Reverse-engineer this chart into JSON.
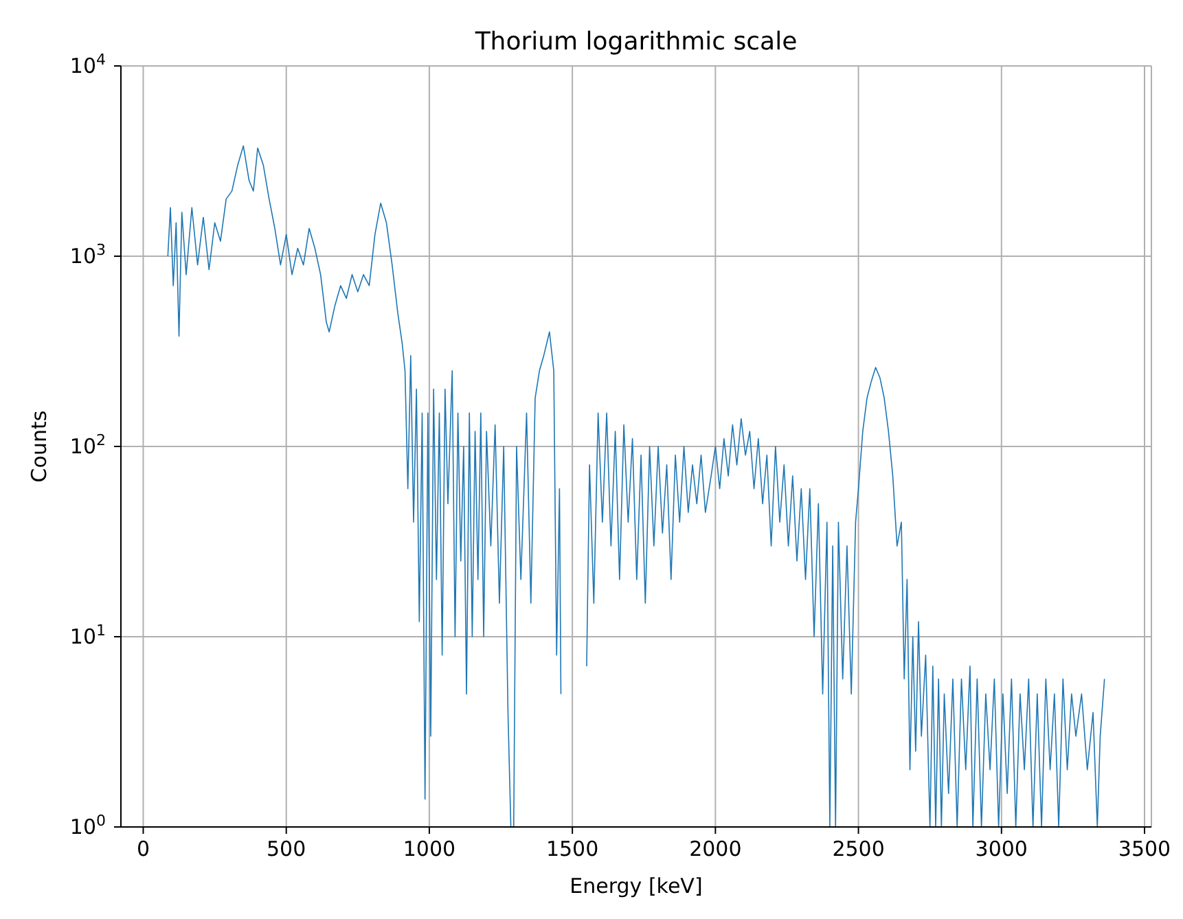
{
  "chart_data": {
    "type": "line",
    "title": "Thorium logarithmic scale",
    "xlabel": "Energy [keV]",
    "ylabel": "Counts",
    "log": "y",
    "grid": true,
    "marker": "none",
    "line_style": "solid",
    "xlim": [
      -78,
      3524
    ],
    "xticks": [
      0,
      500,
      1000,
      1500,
      2000,
      2500,
      3000,
      3500
    ],
    "ylim": [
      1,
      10000
    ],
    "yticks": [
      {
        "value": 1,
        "label": "10$^{0}$"
      },
      {
        "value": 10,
        "label": "10$^{1}$"
      },
      {
        "value": 100,
        "label": "10$^{2}$"
      },
      {
        "value": 1000,
        "label": "10$^{3}$"
      },
      {
        "value": 10000,
        "label": "10$^{4}$"
      }
    ],
    "series": [
      {
        "color": "#1f77b4",
        "x": [
          86,
          95,
          105,
          115,
          125,
          135,
          150,
          170,
          190,
          210,
          230,
          250,
          270,
          290,
          310,
          330,
          350,
          370,
          385,
          400,
          420,
          440,
          460,
          480,
          500,
          520,
          540,
          560,
          580,
          600,
          620,
          640,
          650,
          670,
          690,
          710,
          730,
          750,
          770,
          790,
          810,
          830,
          850,
          870,
          890,
          905,
          915,
          925,
          935,
          945,
          955,
          965,
          975,
          985,
          995,
          1005,
          1015,
          1025,
          1035,
          1045,
          1055,
          1065,
          1080,
          1090,
          1100,
          1110,
          1120,
          1130,
          1140,
          1150,
          1160,
          1170,
          1180,
          1190,
          1200,
          1215,
          1230,
          1245,
          1260,
          1275,
          1285,
          1295,
          1305,
          1320,
          1340,
          1355,
          1370,
          1385,
          1400,
          1420,
          1435,
          1445,
          1455,
          1460,
          1500,
          1550,
          1560,
          1575,
          1590,
          1605,
          1620,
          1635,
          1650,
          1665,
          1680,
          1695,
          1710,
          1725,
          1740,
          1755,
          1770,
          1785,
          1800,
          1815,
          1830,
          1845,
          1860,
          1875,
          1890,
          1905,
          1920,
          1935,
          1950,
          1965,
          1985,
          2000,
          2015,
          2030,
          2045,
          2060,
          2075,
          2090,
          2105,
          2120,
          2135,
          2150,
          2165,
          2180,
          2195,
          2210,
          2225,
          2240,
          2255,
          2270,
          2285,
          2300,
          2315,
          2330,
          2345,
          2360,
          2375,
          2390,
          2400,
          2410,
          2420,
          2430,
          2445,
          2460,
          2475,
          2490,
          2500,
          2515,
          2530,
          2545,
          2560,
          2575,
          2590,
          2605,
          2620,
          2635,
          2650,
          2660,
          2670,
          2680,
          2690,
          2700,
          2710,
          2720,
          2735,
          2750,
          2760,
          2770,
          2780,
          2790,
          2800,
          2815,
          2830,
          2845,
          2860,
          2875,
          2890,
          2900,
          2915,
          2930,
          2945,
          2960,
          2975,
          2990,
          3005,
          3020,
          3035,
          3050,
          3065,
          3080,
          3095,
          3110,
          3125,
          3140,
          3155,
          3170,
          3185,
          3200,
          3215,
          3230,
          3245,
          3260,
          3280,
          3300,
          3320,
          3335,
          3345,
          3360
        ],
        "values": [
          1000,
          1800,
          700,
          1500,
          380,
          1700,
          800,
          1800,
          900,
          1600,
          850,
          1500,
          1200,
          2000,
          2200,
          3000,
          3800,
          2500,
          2200,
          3700,
          3000,
          2000,
          1400,
          900,
          1300,
          800,
          1100,
          900,
          1400,
          1100,
          800,
          450,
          400,
          550,
          700,
          600,
          800,
          650,
          800,
          700,
          1300,
          1900,
          1500,
          900,
          500,
          350,
          250,
          60,
          300,
          40,
          200,
          12,
          150,
          1.4,
          150,
          3,
          200,
          20,
          150,
          8,
          200,
          50,
          250,
          10,
          150,
          25,
          100,
          5,
          150,
          10,
          120,
          20,
          150,
          10,
          120,
          30,
          130,
          15,
          100,
          4,
          1,
          1,
          100,
          20,
          150,
          15,
          180,
          250,
          300,
          400,
          250,
          8,
          60,
          5,
          null,
          7,
          80,
          15,
          150,
          40,
          150,
          30,
          120,
          20,
          130,
          40,
          110,
          20,
          90,
          15,
          100,
          30,
          100,
          35,
          80,
          20,
          90,
          40,
          100,
          45,
          80,
          50,
          90,
          45,
          70,
          100,
          60,
          110,
          70,
          130,
          80,
          140,
          90,
          120,
          60,
          110,
          50,
          90,
          30,
          100,
          40,
          80,
          30,
          70,
          25,
          60,
          20,
          60,
          10,
          50,
          5,
          40,
          1,
          30,
          1,
          40,
          6,
          30,
          5,
          40,
          60,
          120,
          180,
          220,
          260,
          230,
          180,
          120,
          70,
          30,
          40,
          6,
          20,
          2,
          10,
          2.5,
          12,
          3,
          8,
          1,
          7,
          1,
          6,
          1,
          5,
          1.5,
          6,
          1,
          6,
          2,
          7,
          1,
          6,
          1,
          5,
          2,
          6,
          1,
          5,
          1.5,
          6,
          1,
          5,
          2,
          6,
          1,
          5,
          1,
          6,
          2,
          5,
          1,
          6,
          2,
          5,
          3,
          5,
          2,
          4,
          1,
          3,
          6
        ]
      }
    ]
  }
}
